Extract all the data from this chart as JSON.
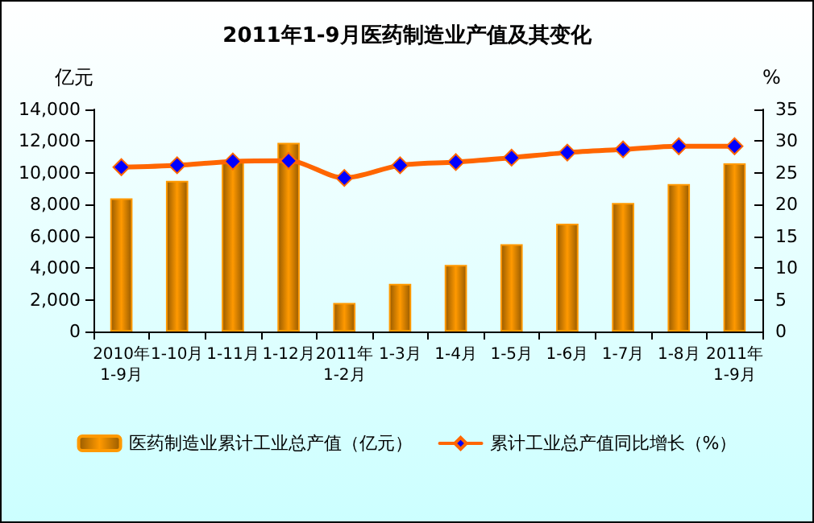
{
  "chart_data": {
    "type": "bar",
    "title": "2011年1-9月医药制造业产值及其变化",
    "ylabel": "亿元",
    "y2label": "%",
    "categories": [
      "2010年1-9月",
      "1-10月",
      "1-11月",
      "1-12月",
      "2011年1-2月",
      "1-3月",
      "1-4月",
      "1-5月",
      "1-6月",
      "1-7月",
      "1-8月",
      "2011年1-9月"
    ],
    "series": [
      {
        "name": "医药制造业累计工业总产值（亿元）",
        "color": "#ff9900",
        "values": [
          8400,
          9500,
          10700,
          11900,
          1800,
          3000,
          4200,
          5500,
          6800,
          8100,
          9300,
          10600
        ]
      },
      {
        "name": "累计工业总产值同比增长（%）",
        "type": "line",
        "axis": "y2",
        "color": "#ff6600",
        "marker": "diamond",
        "values": [
          25.9,
          26.2,
          26.8,
          26.9,
          24.2,
          26.2,
          26.7,
          27.4,
          28.2,
          28.7,
          29.2,
          29.2
        ]
      }
    ],
    "ylim": [
      0,
      14000
    ],
    "yticks": [
      {
        "value": 0,
        "label": "0"
      },
      {
        "value": 2000,
        "label": "2,000"
      },
      {
        "value": 4000,
        "label": "4,000"
      },
      {
        "value": 6000,
        "label": "6,000"
      },
      {
        "value": 8000,
        "label": "8,000"
      },
      {
        "value": 10000,
        "label": "10,000"
      },
      {
        "value": 12000,
        "label": "12,000"
      },
      {
        "value": 14000,
        "label": "14,000"
      }
    ],
    "y2lim": [
      0,
      35
    ],
    "y2ticks": [
      0,
      5,
      10,
      15,
      20,
      25,
      30,
      35
    ],
    "legend": "bottom",
    "grid": false
  }
}
